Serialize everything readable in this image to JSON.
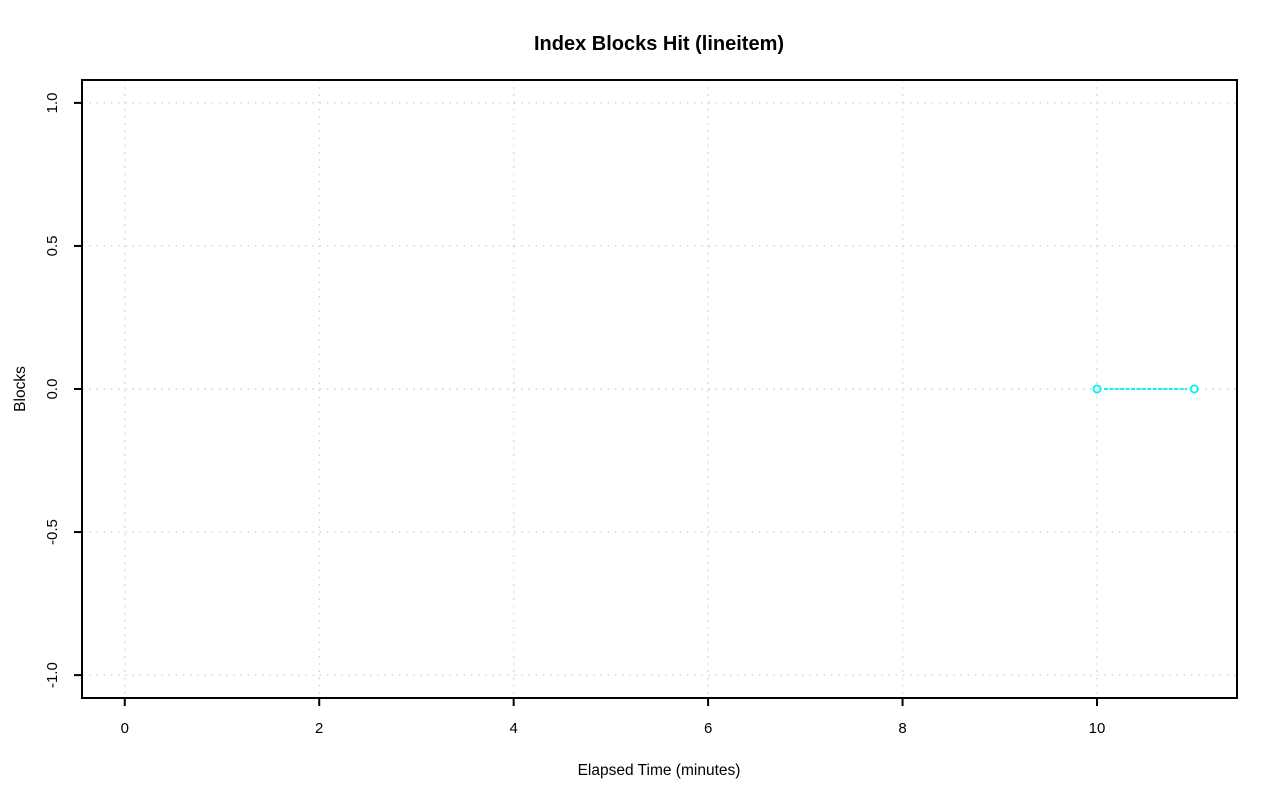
{
  "chart_data": {
    "type": "line",
    "title": "Index Blocks Hit (lineitem)",
    "xlabel": "Elapsed Time (minutes)",
    "ylabel": "Blocks",
    "xlim": [
      -0.44,
      11.44
    ],
    "ylim": [
      -1.08,
      1.08
    ],
    "xticks": [
      {
        "value": 0,
        "label": "0"
      },
      {
        "value": 2,
        "label": "2"
      },
      {
        "value": 4,
        "label": "4"
      },
      {
        "value": 6,
        "label": "6"
      },
      {
        "value": 8,
        "label": "8"
      },
      {
        "value": 10,
        "label": "10"
      }
    ],
    "yticks": [
      {
        "value": -1.0,
        "label": "-1.0"
      },
      {
        "value": -0.5,
        "label": "-0.5"
      },
      {
        "value": 0.0,
        "label": "0.0"
      },
      {
        "value": 0.5,
        "label": "0.5"
      },
      {
        "value": 1.0,
        "label": "1.0"
      }
    ],
    "grid": true,
    "legend": "none",
    "series": [
      {
        "color": "#00f0f0",
        "marker": "open-circle",
        "line_style": "dotted-solid",
        "points": [
          {
            "x": 10,
            "y": 0.0
          },
          {
            "x": 11,
            "y": 0.0
          }
        ]
      }
    ],
    "colors": {
      "background": "#ffffff",
      "grid": "#d4d4d4",
      "axis": "#000000",
      "series": "#00f0f0"
    }
  }
}
